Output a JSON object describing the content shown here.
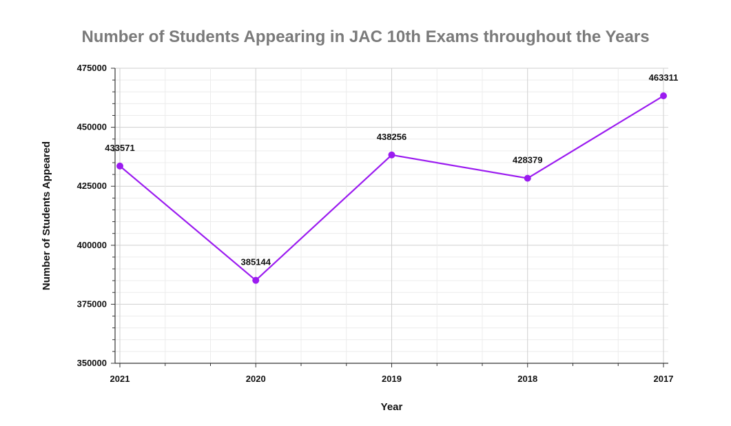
{
  "chart_data": {
    "type": "line",
    "title": "Number of Students Appearing in JAC 10th Exams throughout the Years",
    "xlabel": "Year",
    "ylabel": "Number of Students Appeared",
    "categories": [
      "2021",
      "2020",
      "2019",
      "2018",
      "2017"
    ],
    "series": [
      {
        "values": [
          433571,
          385144,
          438256,
          428379,
          463311
        ],
        "color": "#9b1bf0"
      }
    ],
    "ylim": [
      350000,
      475000
    ],
    "yticks": [
      350000,
      375000,
      400000,
      425000,
      450000,
      475000
    ],
    "grid": true,
    "legend": "none",
    "data_labels": [
      "433571",
      "385144",
      "438256",
      "428379",
      "463311"
    ]
  }
}
